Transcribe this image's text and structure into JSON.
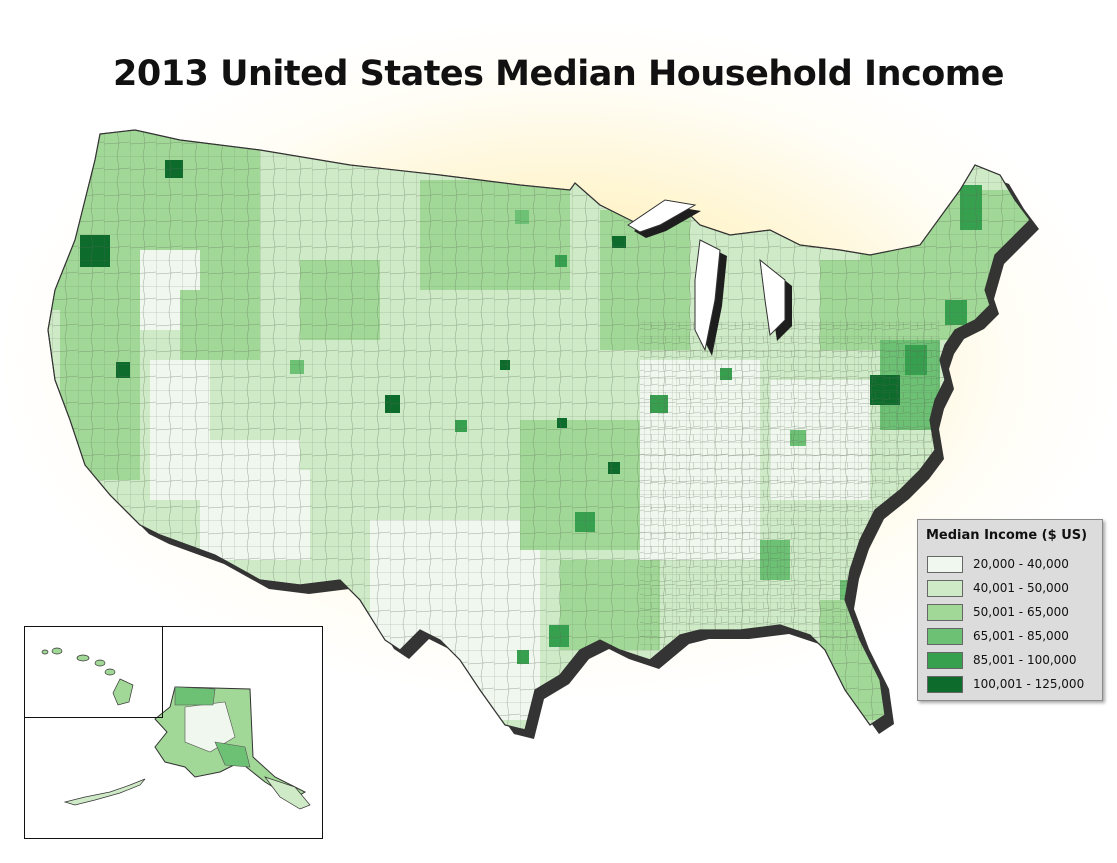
{
  "title": "2013 United States Median Household Income",
  "legend": {
    "title": "Median Income ($ US)",
    "items": [
      {
        "label": "20,000 - 40,000",
        "color": "#f0f7ee"
      },
      {
        "label": "40,001 - 50,000",
        "color": "#cfeac6"
      },
      {
        "label": "50,001 - 65,000",
        "color": "#a2d897"
      },
      {
        "label": "65,001 - 85,000",
        "color": "#6dc174"
      },
      {
        "label": "85,001 - 100,000",
        "color": "#37a04f"
      },
      {
        "label": "100,001 - 125,000",
        "color": "#0d6b2c"
      }
    ]
  },
  "colors": {
    "background_glow": "#ffeeaa",
    "shadow": "#222222",
    "county_border": "#555555"
  }
}
